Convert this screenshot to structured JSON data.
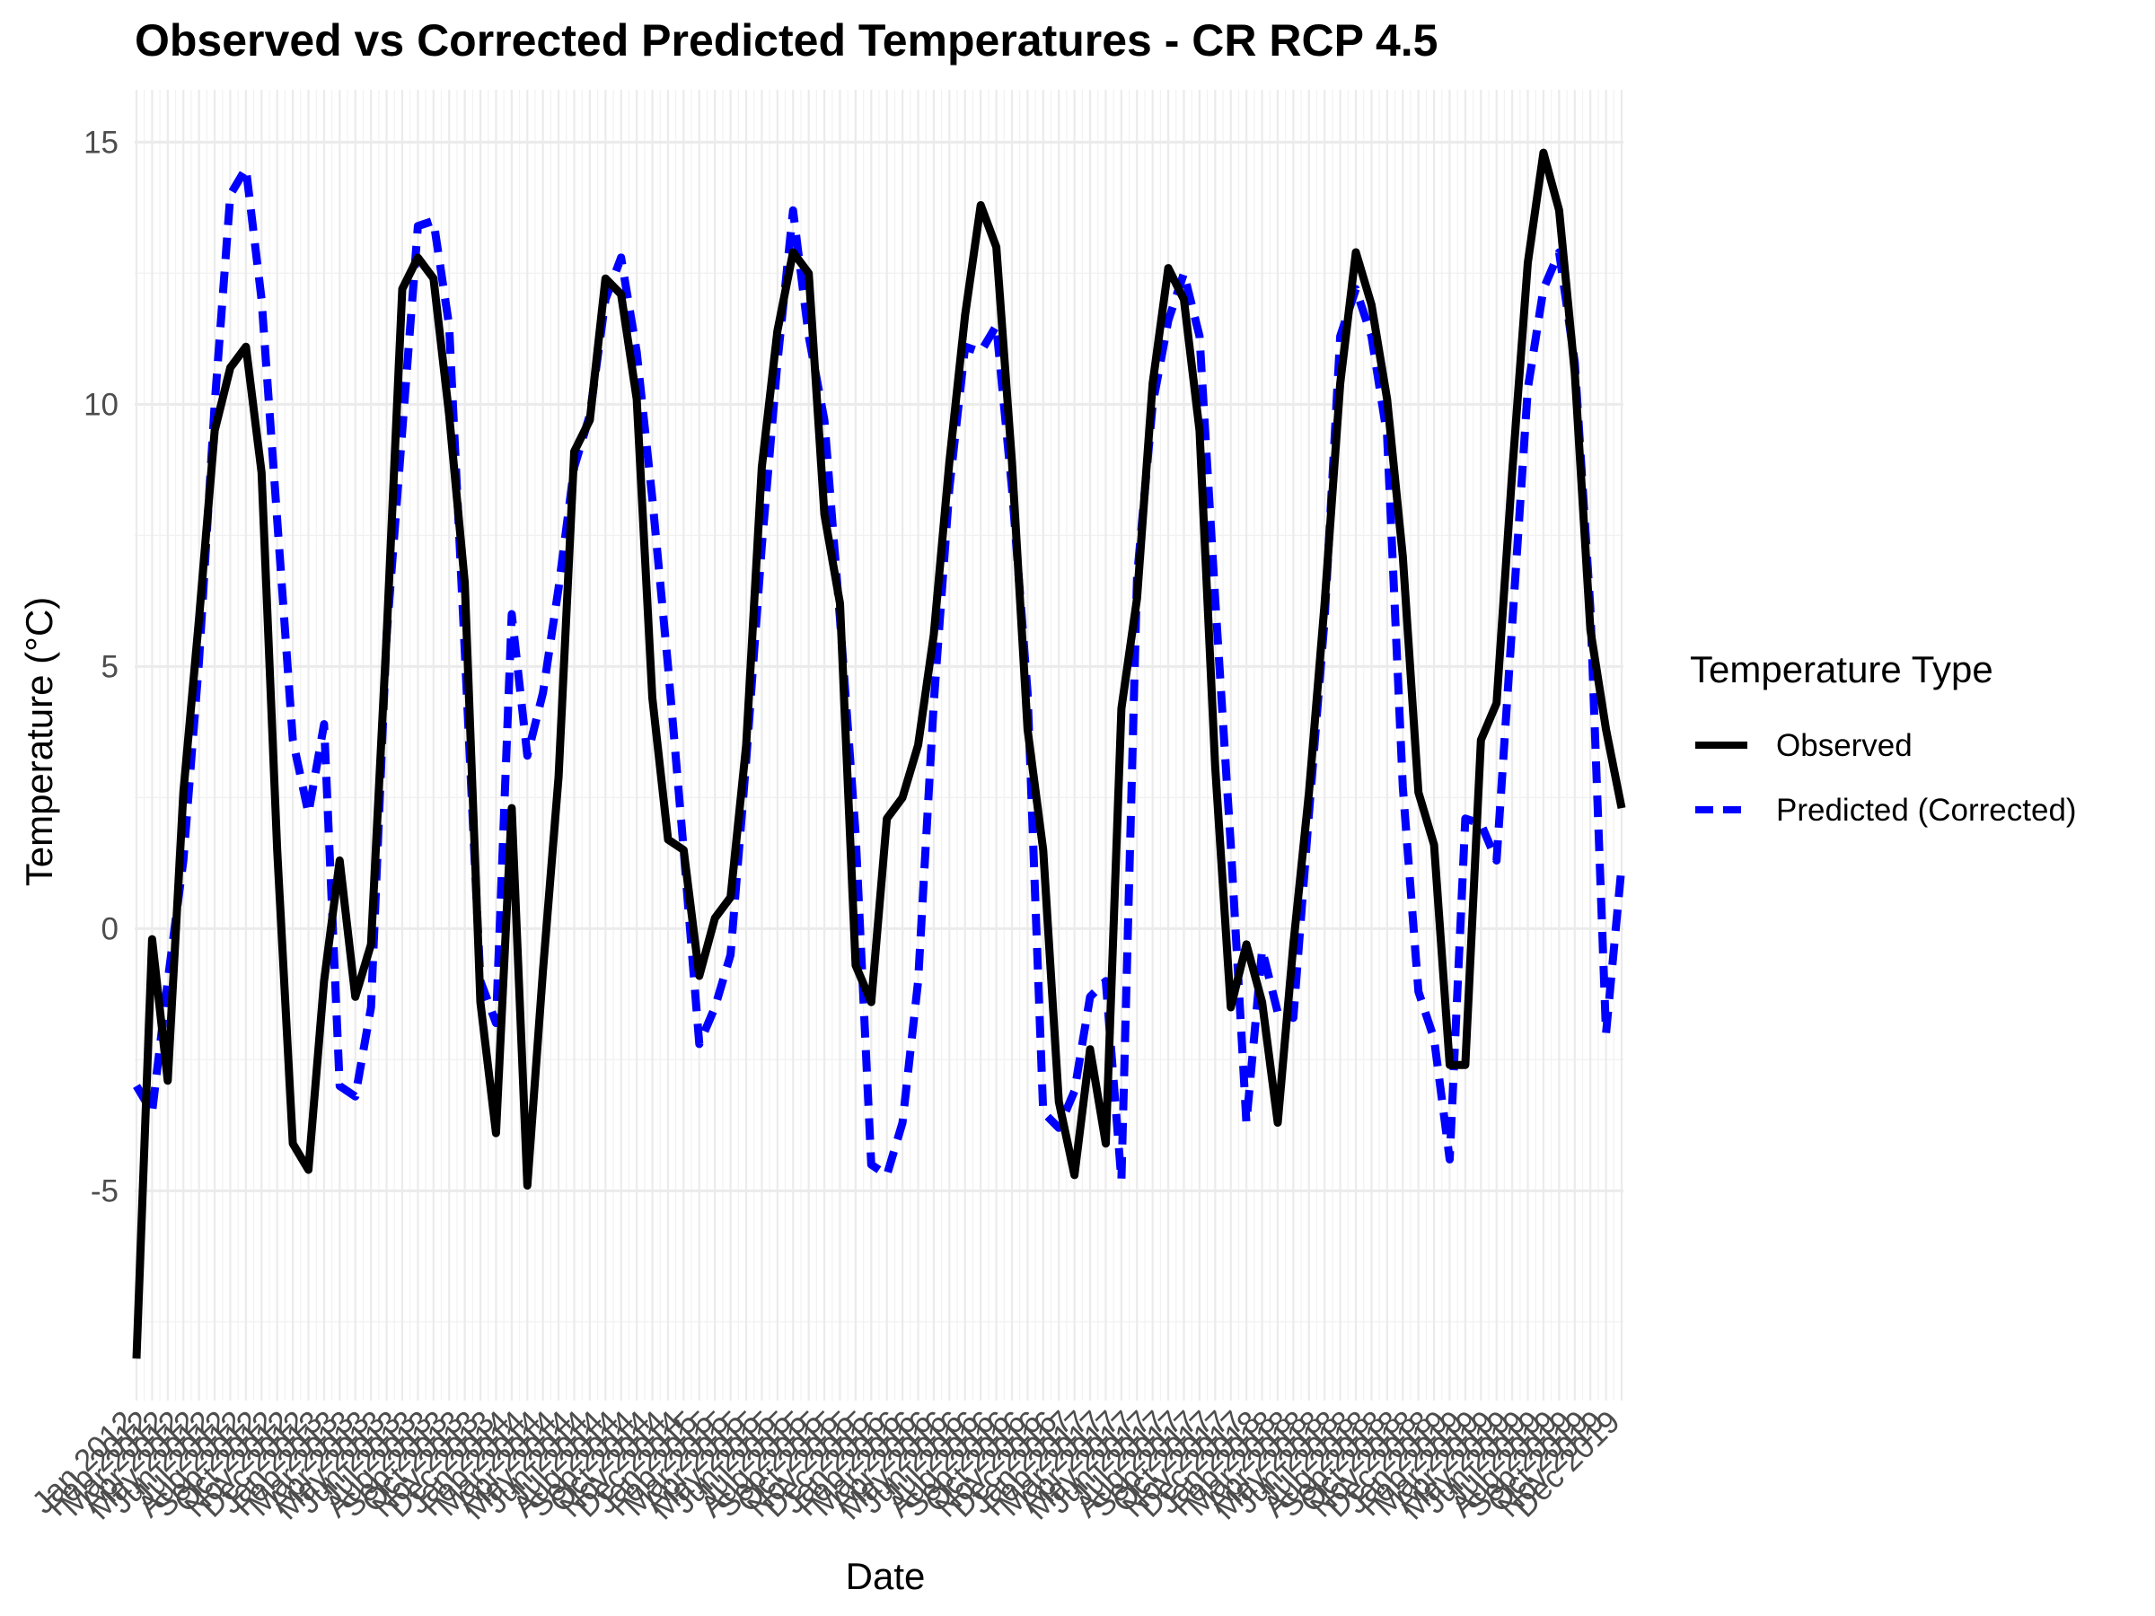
{
  "chart_data": {
    "type": "line",
    "title": "Observed vs Corrected Predicted Temperatures - CR RCP 4.5",
    "xlabel": "Date",
    "ylabel": "Temperature (°C)",
    "x": [
      "Jan 2012",
      "Feb 2012",
      "Mar 2012",
      "Apr 2012",
      "May 2012",
      "Jun 2012",
      "Jul 2012",
      "Aug 2012",
      "Sep 2012",
      "Oct 2012",
      "Nov 2012",
      "Dec 2012",
      "Jan 2013",
      "Feb 2013",
      "Mar 2013",
      "Apr 2013",
      "May 2013",
      "Jun 2013",
      "Jul 2013",
      "Aug 2013",
      "Sep 2013",
      "Oct 2013",
      "Nov 2013",
      "Dec 2013",
      "Jan 2014",
      "Feb 2014",
      "Mar 2014",
      "Apr 2014",
      "May 2014",
      "Jun 2014",
      "Jul 2014",
      "Aug 2014",
      "Sep 2014",
      "Oct 2014",
      "Nov 2014",
      "Dec 2014",
      "Jan 2015",
      "Feb 2015",
      "Mar 2015",
      "Apr 2015",
      "May 2015",
      "Jun 2015",
      "Jul 2015",
      "Aug 2015",
      "Sep 2015",
      "Oct 2015",
      "Nov 2015",
      "Dec 2015",
      "Jan 2016",
      "Feb 2016",
      "Mar 2016",
      "Apr 2016",
      "May 2016",
      "Jun 2016",
      "Jul 2016",
      "Aug 2016",
      "Sep 2016",
      "Oct 2016",
      "Nov 2016",
      "Dec 2016",
      "Jan 2017",
      "Feb 2017",
      "Mar 2017",
      "Apr 2017",
      "May 2017",
      "Jun 2017",
      "Jul 2017",
      "Aug 2017",
      "Sep 2017",
      "Oct 2017",
      "Nov 2017",
      "Dec 2017",
      "Jan 2018",
      "Feb 2018",
      "Mar 2018",
      "Apr 2018",
      "May 2018",
      "Jun 2018",
      "Jul 2018",
      "Aug 2018",
      "Sep 2018",
      "Oct 2018",
      "Nov 2018",
      "Dec 2018",
      "Jan 2019",
      "Feb 2019",
      "Mar 2019",
      "Apr 2019",
      "May 2019",
      "Jun 2019",
      "Jul 2019",
      "Aug 2019",
      "Sep 2019",
      "Oct 2019",
      "Nov 2019",
      "Dec 2019"
    ],
    "series": [
      {
        "name": "Observed",
        "color": "#000000",
        "dash": "solid",
        "values": [
          -8.2,
          -0.2,
          -2.9,
          2.6,
          5.9,
          9.5,
          10.7,
          11.1,
          8.7,
          1.5,
          -4.1,
          -4.6,
          -1.0,
          1.3,
          -1.3,
          -0.3,
          5.6,
          12.2,
          12.8,
          12.4,
          9.8,
          6.6,
          -1.4,
          -3.9,
          2.3,
          -4.9,
          -0.8,
          2.9,
          9.1,
          9.7,
          12.4,
          12.1,
          10.1,
          4.4,
          1.7,
          1.5,
          -0.9,
          0.2,
          0.6,
          3.5,
          8.8,
          11.4,
          12.9,
          12.5,
          7.9,
          6.2,
          -0.7,
          -1.4,
          2.1,
          2.5,
          3.5,
          5.6,
          8.9,
          11.7,
          13.8,
          13.0,
          8.9,
          3.8,
          1.5,
          -3.3,
          -4.7,
          -2.3,
          -4.1,
          4.2,
          6.3,
          10.4,
          12.6,
          12.0,
          9.5,
          3.1,
          -1.5,
          -0.3,
          -1.4,
          -3.7,
          -0.3,
          2.6,
          6.2,
          10.4,
          12.9,
          11.9,
          10.1,
          7.1,
          2.6,
          1.6,
          -2.6,
          -2.6,
          3.6,
          4.3,
          8.7,
          12.7,
          14.8,
          13.7,
          10.6,
          5.7,
          3.8,
          2.3
        ]
      },
      {
        "name": "Predicted (Corrected)",
        "color": "#0000ff",
        "dash": "dashed",
        "values": [
          -3.0,
          -3.5,
          -1.0,
          1.3,
          5.1,
          10.0,
          14.0,
          14.5,
          12.0,
          7.8,
          3.6,
          2.2,
          3.9,
          -3.0,
          -3.2,
          -1.5,
          5.6,
          9.5,
          13.4,
          13.5,
          11.5,
          5.3,
          -1.0,
          -1.8,
          6.0,
          3.3,
          4.5,
          6.5,
          8.8,
          9.8,
          12.0,
          12.8,
          11.0,
          8.2,
          5.0,
          1.5,
          -2.2,
          -1.5,
          -0.5,
          3.2,
          7.3,
          10.8,
          13.7,
          11.3,
          9.7,
          5.9,
          1.8,
          -4.5,
          -4.7,
          -3.7,
          -1.0,
          4.3,
          8.4,
          11.1,
          11.0,
          11.5,
          8.4,
          4.5,
          -3.5,
          -3.8,
          -3.1,
          -1.3,
          -1.0,
          -4.8,
          6.7,
          10.0,
          11.6,
          12.5,
          11.3,
          6.3,
          1.6,
          -3.7,
          -0.4,
          -1.6,
          -1.7,
          2.2,
          5.9,
          11.3,
          12.2,
          11.3,
          9.4,
          2.7,
          -1.2,
          -2.1,
          -4.4,
          2.1,
          2.0,
          1.3,
          5.8,
          10.3,
          12.2,
          12.9,
          10.8,
          6.1,
          -2.0,
          1.2
        ]
      }
    ],
    "ylim": [
      -9,
      16
    ],
    "yticks": [
      -5,
      0,
      5,
      10,
      15
    ],
    "ytick_labels": [
      "-5",
      "0",
      "5",
      "10",
      "15"
    ],
    "grid": true,
    "legend": {
      "title": "Temperature Type",
      "position": "right"
    }
  }
}
